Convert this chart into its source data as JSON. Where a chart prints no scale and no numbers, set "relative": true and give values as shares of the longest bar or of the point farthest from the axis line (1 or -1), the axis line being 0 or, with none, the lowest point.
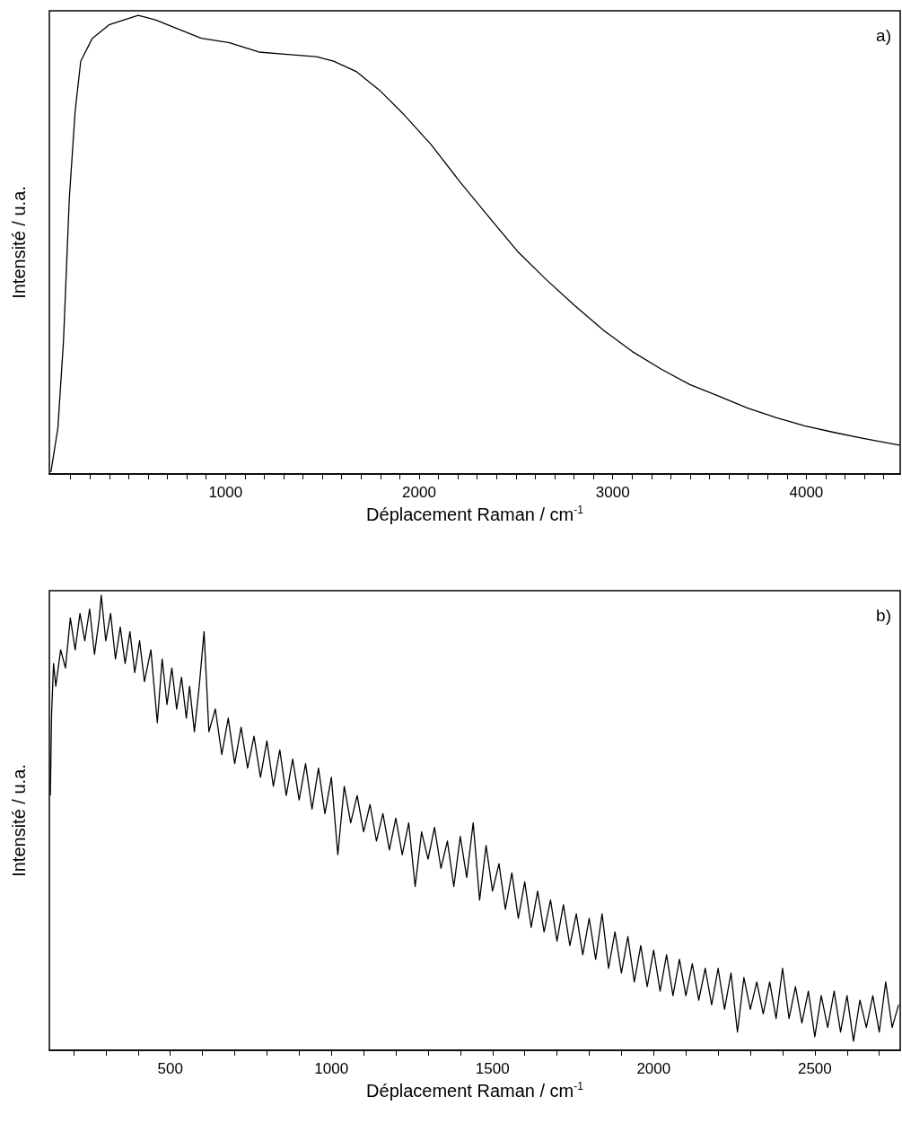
{
  "chart_data": [
    {
      "type": "line",
      "relative": true,
      "xlabel": "Déplacement Raman / cm$^{-1}$",
      "ylabel": "Intensité / u.a.",
      "annotations": [
        "a)"
      ],
      "marker": "none",
      "grid": false,
      "xlim": [
        90,
        4485
      ],
      "xticks": [
        {
          "value": 200,
          "label": null
        },
        {
          "value": 300,
          "label": null
        },
        {
          "value": 400,
          "label": null
        },
        {
          "value": 500,
          "label": null
        },
        {
          "value": 600,
          "label": null
        },
        {
          "value": 700,
          "label": null
        },
        {
          "value": 800,
          "label": null
        },
        {
          "value": 900,
          "label": null
        },
        1000,
        {
          "value": 1100,
          "label": null
        },
        {
          "value": 1200,
          "label": null
        },
        {
          "value": 1300,
          "label": null
        },
        {
          "value": 1400,
          "label": null
        },
        {
          "value": 1500,
          "label": null
        },
        {
          "value": 1600,
          "label": null
        },
        {
          "value": 1700,
          "label": null
        },
        {
          "value": 1800,
          "label": null
        },
        {
          "value": 1900,
          "label": null
        },
        2000,
        {
          "value": 2100,
          "label": null
        },
        {
          "value": 2200,
          "label": null
        },
        {
          "value": 2300,
          "label": null
        },
        {
          "value": 2400,
          "label": null
        },
        {
          "value": 2500,
          "label": null
        },
        {
          "value": 2600,
          "label": null
        },
        {
          "value": 2700,
          "label": null
        },
        {
          "value": 2800,
          "label": null
        },
        {
          "value": 2900,
          "label": null
        },
        3000,
        {
          "value": 3100,
          "label": null
        },
        {
          "value": 3200,
          "label": null
        },
        {
          "value": 3300,
          "label": null
        },
        {
          "value": 3400,
          "label": null
        },
        {
          "value": 3500,
          "label": null
        },
        {
          "value": 3600,
          "label": null
        },
        {
          "value": 3700,
          "label": null
        },
        {
          "value": 3800,
          "label": null
        },
        {
          "value": 3900,
          "label": null
        },
        4000,
        {
          "value": 4100,
          "label": null
        },
        {
          "value": 4200,
          "label": null
        },
        {
          "value": 4300,
          "label": null
        },
        {
          "value": 4400,
          "label": null
        }
      ],
      "series": [
        {
          "color": "#000000",
          "x": [
            98,
            134,
            163,
            193,
            223,
            252,
            312,
            401,
            549,
            638,
            727,
            875,
            1024,
            1172,
            1320,
            1469,
            1558,
            1677,
            1795,
            1914,
            2062,
            2211,
            2359,
            2507,
            2656,
            2804,
            2953,
            3101,
            3249,
            3398,
            3546,
            3694,
            3843,
            3991,
            4139,
            4288,
            4481
          ],
          "values": [
            0.004,
            0.1,
            0.29,
            0.6,
            0.79,
            0.9,
            0.95,
            0.98,
            1.0,
            0.99,
            0.975,
            0.95,
            0.94,
            0.92,
            0.915,
            0.91,
            0.9,
            0.877,
            0.837,
            0.787,
            0.718,
            0.637,
            0.561,
            0.486,
            0.424,
            0.367,
            0.313,
            0.267,
            0.229,
            0.195,
            0.17,
            0.144,
            0.123,
            0.105,
            0.091,
            0.078,
            0.063
          ]
        }
      ]
    },
    {
      "type": "line",
      "relative": true,
      "xlabel": "Déplacement Raman / cm$^{-1}$",
      "ylabel": "Intensité / u.a.",
      "annotations": [
        "b)"
      ],
      "marker": "none",
      "grid": false,
      "xlim": [
        125,
        2765
      ],
      "xticks": [
        {
          "value": 200,
          "label": null
        },
        {
          "value": 300,
          "label": null
        },
        {
          "value": 400,
          "label": null
        },
        500,
        {
          "value": 600,
          "label": null
        },
        {
          "value": 700,
          "label": null
        },
        {
          "value": 800,
          "label": null
        },
        {
          "value": 900,
          "label": null
        },
        1000,
        {
          "value": 1100,
          "label": null
        },
        {
          "value": 1200,
          "label": null
        },
        {
          "value": 1300,
          "label": null
        },
        {
          "value": 1400,
          "label": null
        },
        1500,
        {
          "value": 1600,
          "label": null
        },
        {
          "value": 1700,
          "label": null
        },
        {
          "value": 1800,
          "label": null
        },
        {
          "value": 1900,
          "label": null
        },
        2000,
        {
          "value": 2100,
          "label": null
        },
        {
          "value": 2200,
          "label": null
        },
        {
          "value": 2300,
          "label": null
        },
        {
          "value": 2400,
          "label": null
        },
        2500,
        {
          "value": 2600,
          "label": null
        },
        {
          "value": 2700,
          "label": null
        }
      ],
      "series": [
        {
          "color": "#000000",
          "x": [
            128,
            132,
            138,
            145,
            160,
            175,
            190,
            205,
            220,
            235,
            250,
            265,
            280,
            286,
            300,
            315,
            330,
            345,
            360,
            375,
            390,
            405,
            420,
            440,
            460,
            475,
            490,
            505,
            520,
            535,
            550,
            560,
            575,
            590,
            605,
            620,
            640,
            660,
            680,
            700,
            720,
            740,
            760,
            780,
            800,
            820,
            840,
            860,
            880,
            900,
            920,
            940,
            960,
            980,
            1000,
            1020,
            1040,
            1060,
            1080,
            1100,
            1120,
            1140,
            1160,
            1180,
            1200,
            1220,
            1240,
            1260,
            1280,
            1300,
            1320,
            1340,
            1360,
            1380,
            1400,
            1420,
            1440,
            1460,
            1480,
            1500,
            1520,
            1540,
            1560,
            1580,
            1600,
            1620,
            1640,
            1660,
            1680,
            1700,
            1720,
            1740,
            1760,
            1780,
            1800,
            1820,
            1840,
            1860,
            1880,
            1900,
            1920,
            1940,
            1960,
            1980,
            2000,
            2020,
            2040,
            2060,
            2080,
            2100,
            2120,
            2140,
            2160,
            2180,
            2200,
            2220,
            2240,
            2260,
            2280,
            2300,
            2320,
            2340,
            2360,
            2380,
            2400,
            2420,
            2440,
            2460,
            2480,
            2500,
            2520,
            2540,
            2560,
            2580,
            2600,
            2620,
            2640,
            2660,
            2680,
            2700,
            2720,
            2740,
            2760
          ],
          "values": [
            0.56,
            0.74,
            0.85,
            0.8,
            0.88,
            0.84,
            0.95,
            0.88,
            0.96,
            0.9,
            0.97,
            0.87,
            0.95,
            1.0,
            0.9,
            0.96,
            0.86,
            0.93,
            0.85,
            0.92,
            0.83,
            0.9,
            0.81,
            0.88,
            0.72,
            0.86,
            0.76,
            0.84,
            0.75,
            0.82,
            0.73,
            0.8,
            0.7,
            0.8,
            0.92,
            0.7,
            0.75,
            0.65,
            0.73,
            0.63,
            0.71,
            0.62,
            0.69,
            0.6,
            0.68,
            0.58,
            0.66,
            0.56,
            0.64,
            0.55,
            0.63,
            0.53,
            0.62,
            0.52,
            0.6,
            0.43,
            0.58,
            0.5,
            0.56,
            0.48,
            0.54,
            0.46,
            0.52,
            0.44,
            0.51,
            0.43,
            0.5,
            0.36,
            0.48,
            0.42,
            0.49,
            0.4,
            0.46,
            0.36,
            0.47,
            0.38,
            0.5,
            0.33,
            0.45,
            0.35,
            0.41,
            0.31,
            0.39,
            0.29,
            0.37,
            0.27,
            0.35,
            0.26,
            0.33,
            0.24,
            0.32,
            0.23,
            0.3,
            0.21,
            0.29,
            0.2,
            0.3,
            0.18,
            0.26,
            0.17,
            0.25,
            0.15,
            0.23,
            0.14,
            0.22,
            0.13,
            0.21,
            0.12,
            0.2,
            0.12,
            0.19,
            0.11,
            0.18,
            0.1,
            0.18,
            0.09,
            0.17,
            0.04,
            0.16,
            0.09,
            0.15,
            0.08,
            0.15,
            0.07,
            0.18,
            0.07,
            0.14,
            0.06,
            0.13,
            0.03,
            0.12,
            0.05,
            0.13,
            0.04,
            0.12,
            0.02,
            0.11,
            0.05,
            0.12,
            0.04,
            0.15,
            0.05,
            0.1
          ]
        }
      ]
    }
  ]
}
